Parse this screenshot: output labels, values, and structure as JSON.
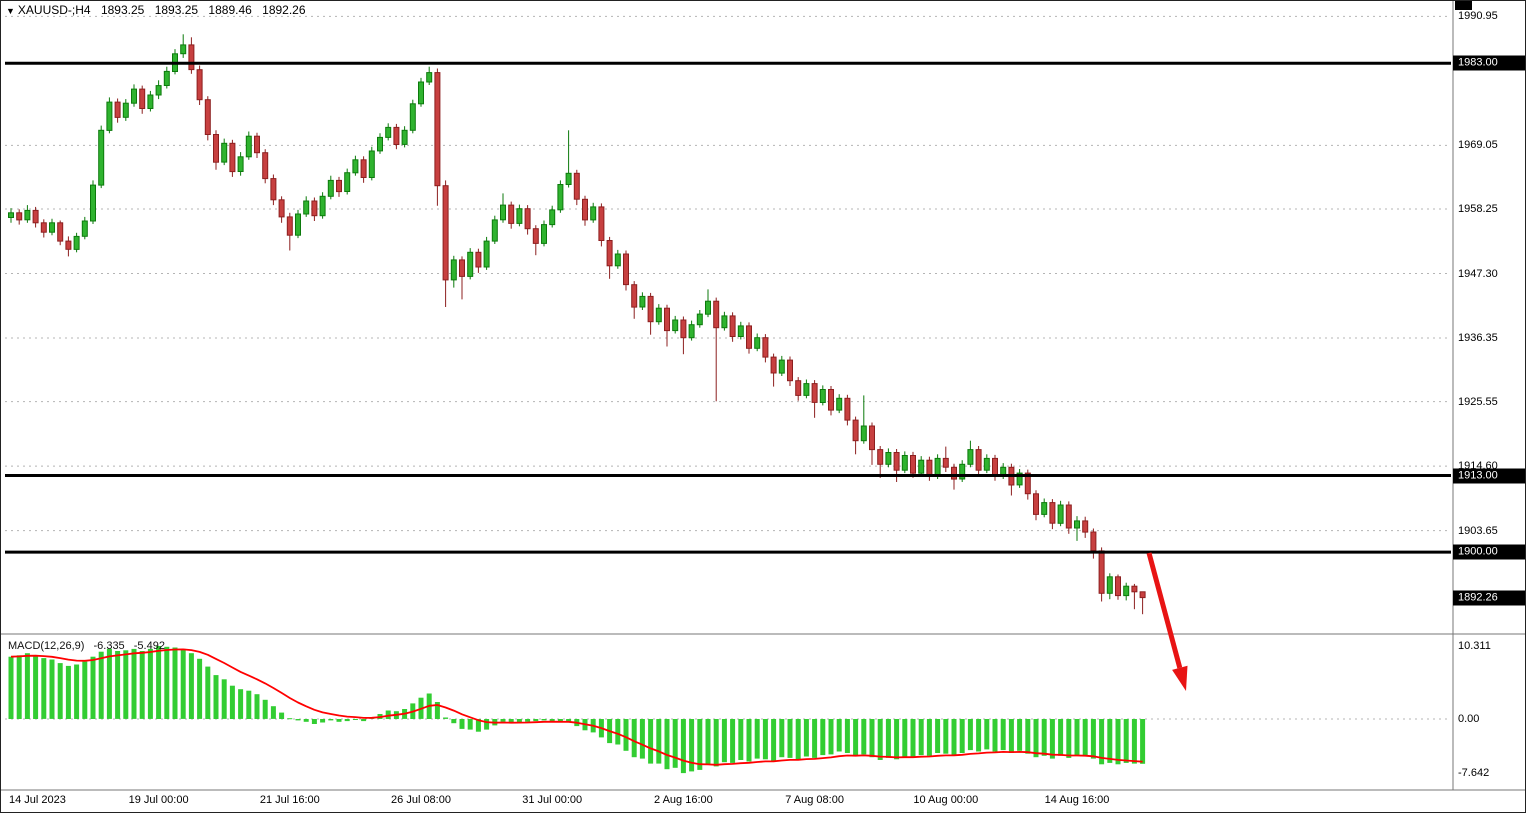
{
  "header": {
    "symbol_period": "XAUUSD-;H4",
    "open": "1893.25",
    "high": "1893.25",
    "low": "1889.46",
    "close": "1892.26"
  },
  "indicator": {
    "name": "MACD(12,26,9)",
    "macd_value": "-6.335",
    "signal_value": "-5.492"
  },
  "chart_data": {
    "type": "candlestick",
    "symbol": "XAUUSD-",
    "timeframe": "H4",
    "price_scale": {
      "min": 1886.6,
      "max": 1992.2
    },
    "macd_scale": {
      "min": -9.9,
      "max": 11.3
    },
    "price_axis_labels": [
      "1990.95",
      "1969.05",
      "1958.25",
      "1947.30",
      "1936.35",
      "1925.55",
      "1914.60",
      "1903.65"
    ],
    "macd_axis_labels": [
      "10.311",
      "0.00",
      "-7.642"
    ],
    "horizontal_lines": [
      1983.0,
      1913.0,
      1900.0
    ],
    "current_price": 1892.26,
    "time_axis": [
      {
        "label": "14 Jul 2023",
        "candle": 0
      },
      {
        "label": "19 Jul 00:00",
        "candle": 18
      },
      {
        "label": "21 Jul 16:00",
        "candle": 34
      },
      {
        "label": "26 Jul 08:00",
        "candle": 50
      },
      {
        "label": "31 Jul 00:00",
        "candle": 66
      },
      {
        "label": "2 Aug 16:00",
        "candle": 82
      },
      {
        "label": "7 Aug 08:00",
        "candle": 98
      },
      {
        "label": "10 Aug 00:00",
        "candle": 114
      },
      {
        "label": "14 Aug 16:00",
        "candle": 130
      }
    ],
    "candles": [
      [
        1956.8,
        1958.4,
        1955.9,
        1957.6
      ],
      [
        1957.6,
        1958.2,
        1955.6,
        1956.4
      ],
      [
        1956.4,
        1958.9,
        1955.9,
        1958.0
      ],
      [
        1958.0,
        1958.6,
        1955.1,
        1955.9
      ],
      [
        1955.9,
        1956.5,
        1953.4,
        1954.3
      ],
      [
        1954.3,
        1956.6,
        1953.8,
        1955.9
      ],
      [
        1955.9,
        1956.3,
        1952.1,
        1952.8
      ],
      [
        1952.8,
        1953.6,
        1950.2,
        1951.4
      ],
      [
        1951.4,
        1954.2,
        1950.9,
        1953.6
      ],
      [
        1953.6,
        1956.9,
        1953.1,
        1956.2
      ],
      [
        1956.2,
        1963.1,
        1955.7,
        1962.3
      ],
      [
        1962.3,
        1972.4,
        1961.8,
        1971.6
      ],
      [
        1971.6,
        1977.2,
        1971.1,
        1976.4
      ],
      [
        1976.4,
        1977.0,
        1972.9,
        1973.8
      ],
      [
        1973.8,
        1976.9,
        1973.2,
        1976.2
      ],
      [
        1976.2,
        1979.4,
        1975.6,
        1978.6
      ],
      [
        1978.6,
        1979.2,
        1974.4,
        1975.3
      ],
      [
        1975.3,
        1978.3,
        1974.8,
        1977.6
      ],
      [
        1977.6,
        1980.1,
        1976.9,
        1979.2
      ],
      [
        1979.2,
        1982.4,
        1978.7,
        1981.6
      ],
      [
        1981.6,
        1985.4,
        1981.1,
        1984.6
      ],
      [
        1984.6,
        1987.9,
        1983.9,
        1986.1
      ],
      [
        1986.1,
        1987.4,
        1981.2,
        1981.9
      ],
      [
        1981.9,
        1982.6,
        1975.9,
        1976.8
      ],
      [
        1976.8,
        1977.4,
        1969.9,
        1970.9
      ],
      [
        1970.9,
        1971.6,
        1964.9,
        1966.2
      ],
      [
        1966.2,
        1970.2,
        1965.7,
        1969.4
      ],
      [
        1969.4,
        1970.0,
        1963.7,
        1964.6
      ],
      [
        1964.6,
        1967.9,
        1963.9,
        1967.1
      ],
      [
        1967.1,
        1971.4,
        1966.6,
        1970.6
      ],
      [
        1970.6,
        1971.2,
        1966.9,
        1967.8
      ],
      [
        1967.8,
        1968.4,
        1962.6,
        1963.4
      ],
      [
        1963.4,
        1964.1,
        1958.9,
        1959.8
      ],
      [
        1959.8,
        1960.4,
        1955.9,
        1956.9
      ],
      [
        1956.9,
        1957.6,
        1951.2,
        1953.8
      ],
      [
        1953.8,
        1958.1,
        1953.3,
        1957.4
      ],
      [
        1957.4,
        1960.4,
        1956.9,
        1959.6
      ],
      [
        1959.6,
        1960.2,
        1956.2,
        1957.1
      ],
      [
        1957.1,
        1961.1,
        1956.6,
        1960.4
      ],
      [
        1960.4,
        1963.9,
        1959.9,
        1963.1
      ],
      [
        1963.1,
        1963.7,
        1960.3,
        1961.2
      ],
      [
        1961.2,
        1965.1,
        1960.7,
        1964.4
      ],
      [
        1964.4,
        1967.3,
        1963.9,
        1966.6
      ],
      [
        1966.6,
        1967.2,
        1962.7,
        1963.6
      ],
      [
        1963.6,
        1968.8,
        1963.1,
        1968.1
      ],
      [
        1968.1,
        1971.1,
        1967.6,
        1970.4
      ],
      [
        1970.4,
        1972.8,
        1969.9,
        1972.1
      ],
      [
        1972.1,
        1972.7,
        1968.4,
        1969.2
      ],
      [
        1969.2,
        1972.3,
        1968.7,
        1971.6
      ],
      [
        1971.6,
        1976.8,
        1971.1,
        1976.1
      ],
      [
        1976.1,
        1980.5,
        1975.6,
        1979.8
      ],
      [
        1979.8,
        1982.4,
        1979.3,
        1981.4
      ],
      [
        1981.4,
        1982.1,
        1958.8,
        1962.2
      ],
      [
        1962.2,
        1963.1,
        1941.6,
        1946.2
      ],
      [
        1946.2,
        1950.3,
        1944.9,
        1949.6
      ],
      [
        1949.6,
        1950.2,
        1942.9,
        1946.8
      ],
      [
        1946.8,
        1951.6,
        1946.3,
        1950.9
      ],
      [
        1950.9,
        1951.5,
        1947.4,
        1948.4
      ],
      [
        1948.4,
        1953.5,
        1947.9,
        1952.8
      ],
      [
        1952.8,
        1957.1,
        1952.3,
        1956.4
      ],
      [
        1956.4,
        1960.9,
        1955.9,
        1958.9
      ],
      [
        1958.9,
        1959.5,
        1954.9,
        1955.8
      ],
      [
        1955.8,
        1959.0,
        1955.3,
        1958.3
      ],
      [
        1958.3,
        1958.9,
        1953.9,
        1954.9
      ],
      [
        1954.9,
        1955.5,
        1950.4,
        1952.4
      ],
      [
        1952.4,
        1956.3,
        1951.9,
        1955.6
      ],
      [
        1955.6,
        1958.8,
        1955.1,
        1958.1
      ],
      [
        1958.1,
        1963.1,
        1957.6,
        1962.4
      ],
      [
        1962.4,
        1971.6,
        1961.9,
        1964.3
      ],
      [
        1964.3,
        1964.9,
        1958.9,
        1959.9
      ],
      [
        1959.9,
        1960.5,
        1955.4,
        1956.4
      ],
      [
        1956.4,
        1959.3,
        1955.9,
        1958.6
      ],
      [
        1958.6,
        1959.2,
        1951.9,
        1952.9
      ],
      [
        1952.9,
        1953.5,
        1946.4,
        1948.6
      ],
      [
        1948.6,
        1951.3,
        1948.1,
        1950.6
      ],
      [
        1950.6,
        1951.2,
        1944.4,
        1945.4
      ],
      [
        1945.4,
        1946.0,
        1939.6,
        1941.6
      ],
      [
        1941.6,
        1944.1,
        1941.1,
        1943.4
      ],
      [
        1943.4,
        1944.0,
        1936.9,
        1939.1
      ],
      [
        1939.1,
        1942.1,
        1938.6,
        1941.4
      ],
      [
        1941.4,
        1942.0,
        1934.9,
        1937.6
      ],
      [
        1937.6,
        1940.1,
        1937.1,
        1939.4
      ],
      [
        1939.4,
        1940.0,
        1933.6,
        1936.4
      ],
      [
        1936.4,
        1939.3,
        1935.9,
        1938.6
      ],
      [
        1938.6,
        1941.1,
        1938.1,
        1940.4
      ],
      [
        1940.4,
        1944.6,
        1939.9,
        1942.6
      ],
      [
        1942.6,
        1943.2,
        1925.6,
        1938.1
      ],
      [
        1938.1,
        1940.8,
        1937.6,
        1940.1
      ],
      [
        1940.1,
        1940.7,
        1935.7,
        1936.6
      ],
      [
        1936.6,
        1939.1,
        1936.1,
        1938.4
      ],
      [
        1938.4,
        1939.0,
        1933.7,
        1934.6
      ],
      [
        1934.6,
        1937.1,
        1934.1,
        1936.4
      ],
      [
        1936.4,
        1937.0,
        1932.2,
        1933.1
      ],
      [
        1933.1,
        1933.7,
        1928.1,
        1930.4
      ],
      [
        1930.4,
        1933.3,
        1929.9,
        1932.6
      ],
      [
        1932.6,
        1933.2,
        1928.2,
        1929.1
      ],
      [
        1929.1,
        1929.7,
        1925.7,
        1926.6
      ],
      [
        1926.6,
        1929.3,
        1926.1,
        1928.6
      ],
      [
        1928.6,
        1929.2,
        1922.8,
        1925.4
      ],
      [
        1925.4,
        1928.3,
        1924.9,
        1927.6
      ],
      [
        1927.6,
        1928.2,
        1923.2,
        1924.1
      ],
      [
        1924.1,
        1926.8,
        1923.6,
        1926.1
      ],
      [
        1926.1,
        1926.7,
        1921.5,
        1922.4
      ],
      [
        1922.4,
        1923.0,
        1916.6,
        1918.9
      ],
      [
        1918.9,
        1926.6,
        1918.4,
        1921.4
      ],
      [
        1921.4,
        1922.0,
        1914.8,
        1917.4
      ],
      [
        1917.4,
        1918.0,
        1912.6,
        1914.9
      ],
      [
        1914.9,
        1917.6,
        1914.4,
        1916.9
      ],
      [
        1916.9,
        1917.5,
        1911.9,
        1913.9
      ],
      [
        1913.9,
        1917.1,
        1913.4,
        1916.4
      ],
      [
        1916.4,
        1917.0,
        1912.6,
        1913.4
      ],
      [
        1913.4,
        1916.3,
        1912.9,
        1915.6
      ],
      [
        1915.6,
        1916.2,
        1912.1,
        1912.9
      ],
      [
        1912.9,
        1916.6,
        1912.4,
        1915.9
      ],
      [
        1915.9,
        1917.9,
        1913.6,
        1914.4
      ],
      [
        1914.4,
        1915.0,
        1910.6,
        1912.4
      ],
      [
        1912.4,
        1915.6,
        1911.9,
        1914.9
      ],
      [
        1914.9,
        1918.9,
        1914.4,
        1917.4
      ],
      [
        1917.4,
        1918.0,
        1913.1,
        1913.9
      ],
      [
        1913.9,
        1916.6,
        1913.4,
        1915.9
      ],
      [
        1915.9,
        1916.5,
        1912.1,
        1912.9
      ],
      [
        1912.9,
        1915.1,
        1912.4,
        1914.4
      ],
      [
        1914.4,
        1915.0,
        1909.6,
        1911.4
      ],
      [
        1911.4,
        1914.1,
        1910.9,
        1913.4
      ],
      [
        1913.4,
        1914.0,
        1908.9,
        1909.9
      ],
      [
        1909.9,
        1910.5,
        1905.4,
        1906.4
      ],
      [
        1906.4,
        1909.1,
        1905.9,
        1908.4
      ],
      [
        1908.4,
        1909.0,
        1903.9,
        1904.9
      ],
      [
        1904.9,
        1908.7,
        1904.4,
        1908.0
      ],
      [
        1908.0,
        1908.6,
        1903.1,
        1904.1
      ],
      [
        1904.1,
        1906.1,
        1901.9,
        1905.3
      ],
      [
        1905.3,
        1906.0,
        1902.4,
        1903.4
      ],
      [
        1903.4,
        1904.0,
        1898.9,
        1900.2
      ],
      [
        1900.2,
        1900.8,
        1891.6,
        1893.0
      ],
      [
        1893.0,
        1896.4,
        1892.0,
        1895.8
      ],
      [
        1895.8,
        1896.2,
        1891.9,
        1892.6
      ],
      [
        1892.6,
        1894.8,
        1891.8,
        1894.2
      ],
      [
        1894.2,
        1894.6,
        1890.3,
        1893.25
      ],
      [
        1893.25,
        1893.25,
        1889.46,
        1892.26
      ]
    ],
    "macd_values": [
      8.8,
      9.0,
      9.3,
      9.0,
      8.6,
      8.4,
      7.9,
      7.5,
      7.7,
      8.1,
      8.8,
      9.5,
      9.9,
      9.6,
      9.7,
      9.9,
      9.6,
      9.9,
      10.311,
      10.2,
      10.1,
      9.9,
      9.3,
      8.5,
      7.4,
      6.2,
      5.6,
      4.7,
      4.2,
      4.0,
      3.5,
      2.7,
      1.8,
      0.9,
      0.1,
      -0.2,
      -0.4,
      -0.7,
      -0.5,
      -0.2,
      -0.4,
      -0.3,
      0.0,
      -0.3,
      0.2,
      0.7,
      1.2,
      1.1,
      1.4,
      2.2,
      3.0,
      3.6,
      2.4,
      0.2,
      -0.6,
      -1.4,
      -1.5,
      -1.8,
      -1.5,
      -0.9,
      -0.4,
      -0.6,
      -0.5,
      -0.4,
      -0.3,
      -0.2,
      -0.3,
      -0.5,
      -0.4,
      -1.0,
      -1.6,
      -1.9,
      -2.6,
      -3.4,
      -3.6,
      -4.5,
      -5.4,
      -5.6,
      -6.3,
      -6.3,
      -7.1,
      -6.9,
      -7.642,
      -7.4,
      -7.2,
      -6.5,
      -6.7,
      -6.1,
      -6.2,
      -5.8,
      -6.0,
      -5.6,
      -5.7,
      -5.9,
      -5.4,
      -5.5,
      -5.7,
      -5.3,
      -5.5,
      -5.1,
      -5.0,
      -4.6,
      -4.8,
      -5.3,
      -5.0,
      -5.4,
      -5.8,
      -5.5,
      -5.7,
      -5.3,
      -5.4,
      -5.1,
      -5.2,
      -4.8,
      -4.9,
      -5.1,
      -4.8,
      -4.4,
      -4.6,
      -4.3,
      -4.6,
      -4.4,
      -4.8,
      -4.5,
      -4.9,
      -5.4,
      -5.2,
      -5.6,
      -5.2,
      -5.5,
      -5.2,
      -5.3,
      -5.6,
      -6.4,
      -6.2,
      -6.4,
      -6.2,
      -6.3,
      -6.335
    ],
    "annotations": [
      {
        "type": "arrow",
        "from": [
          1148,
          552
        ],
        "to": [
          1185,
          690
        ],
        "color": "#e81414"
      }
    ],
    "colors": {
      "bull": "#2fb32f",
      "bull_border": "#0c7a0c",
      "bear": "#c74040",
      "bear_border": "#8c1f1f",
      "macd_bar": "#32cd32",
      "signal_line": "#ff0000",
      "level_line": "#000000",
      "grid": "#b4b4b4",
      "axis_box_bg": "#000000",
      "axis_box_text": "#ffffff"
    }
  }
}
